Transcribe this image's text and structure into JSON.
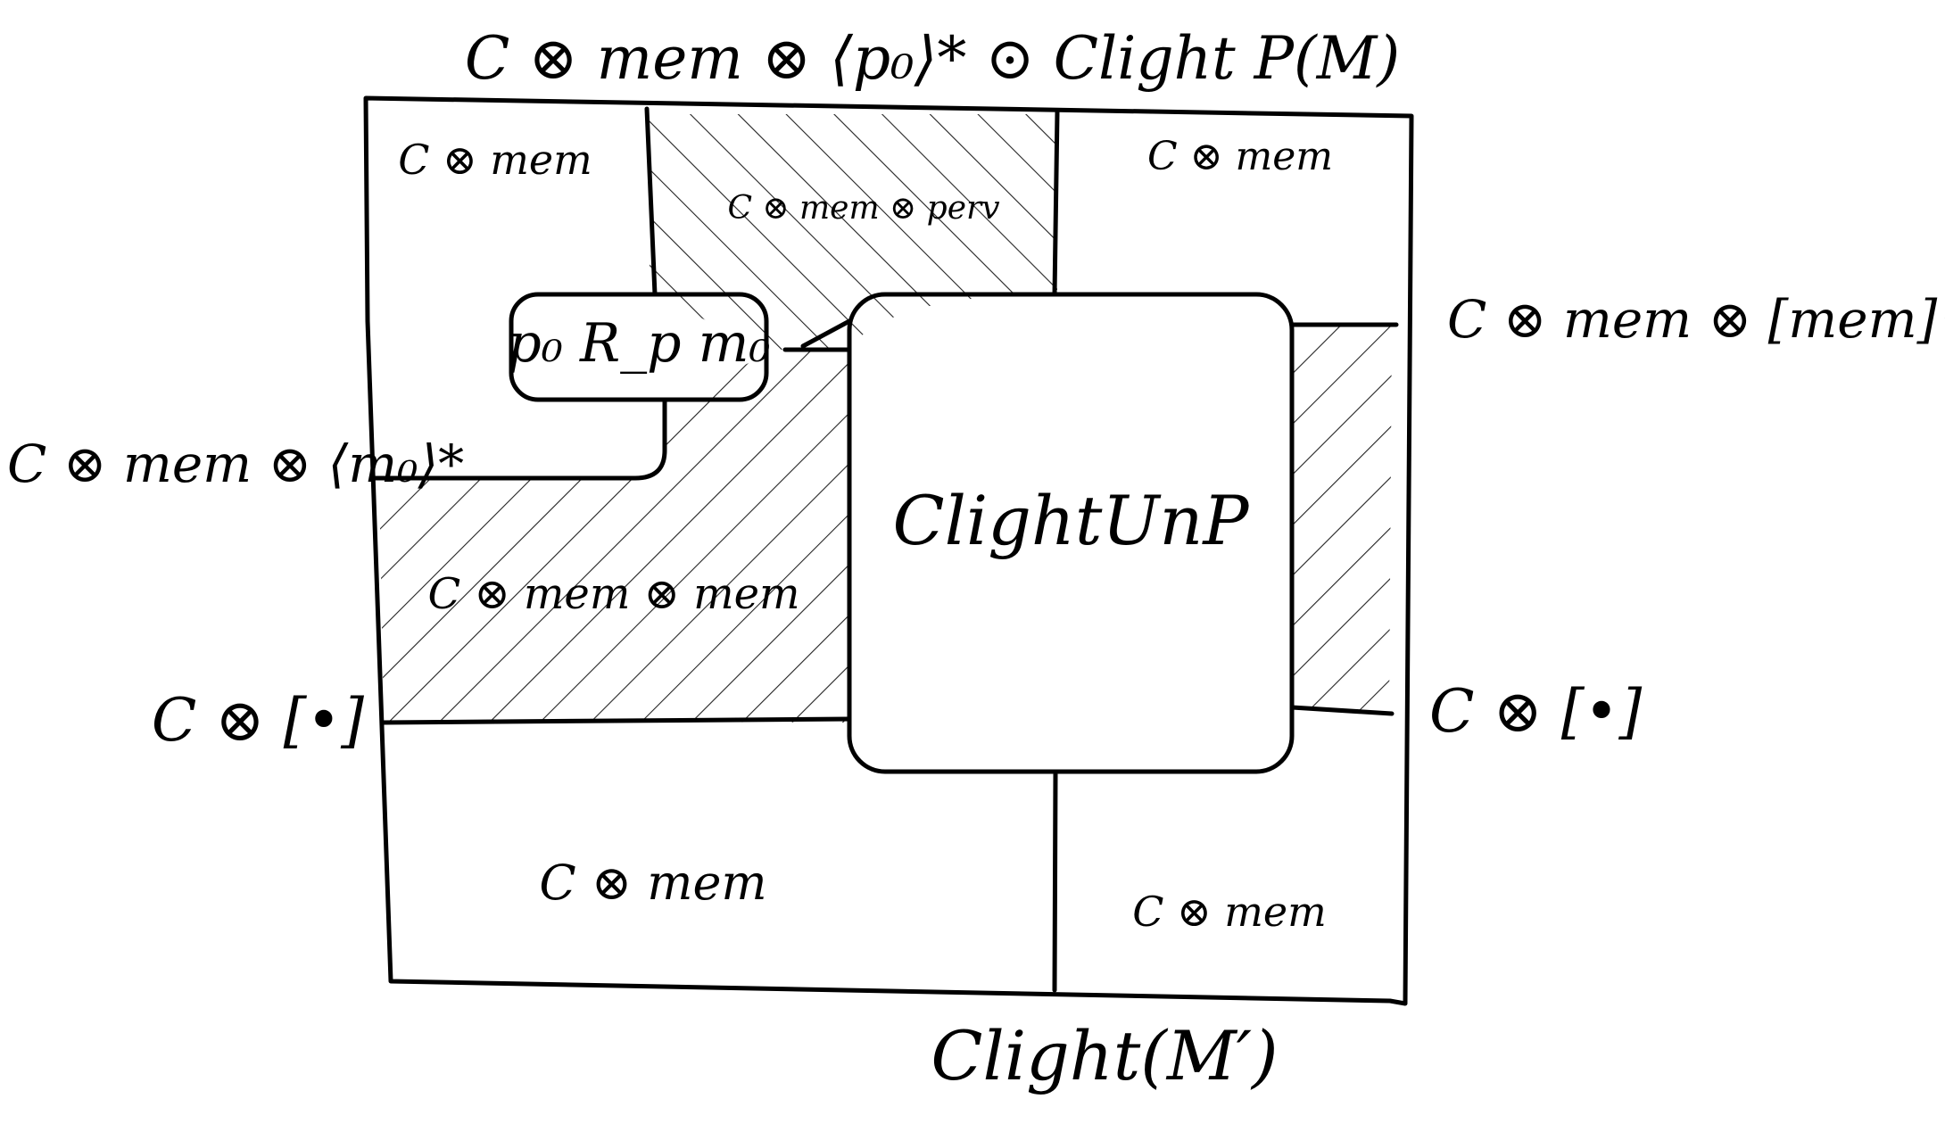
{
  "labels": {
    "top": "C ⊗ mem ⊗ ⟨p₀⟩* ⊙ Clight P(M)",
    "right_top": "C ⊗ mem ⊗ [mem]•*",
    "left_mid": "C ⊗ mem ⊗ ⟨m₀⟩*",
    "left_bottom": "C ⊗ [•]",
    "right_bottom": "C ⊗ [•]",
    "bottom": "Clight(M′)"
  },
  "regions": {
    "top_left": "C ⊗ mem",
    "top_middle": "C ⊗ mem ⊗ perv",
    "top_right": "C ⊗ mem",
    "relation": "p₀ R_p m₀",
    "left_hatched": "C ⊗ mem ⊗ mem",
    "center": "ClightUnP",
    "bottom_left": "C ⊗ mem",
    "bottom_right": "C ⊗ mem"
  }
}
